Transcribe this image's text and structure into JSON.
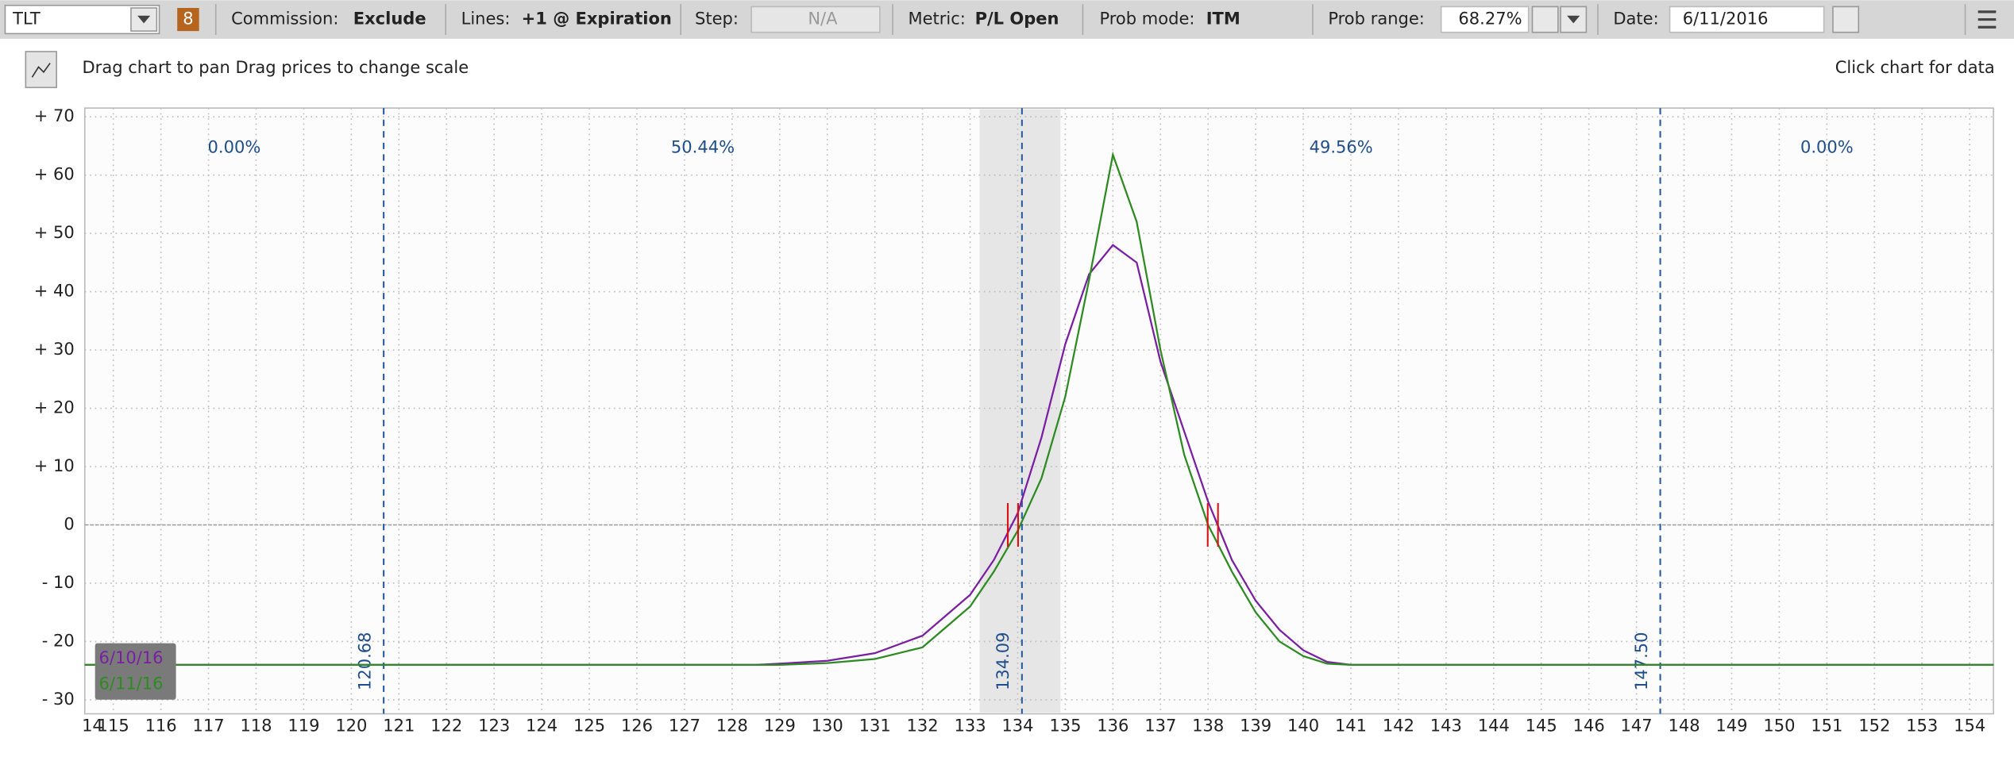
{
  "toolbar": {
    "symbol": "TLT",
    "badge": "8",
    "commission_label": "Commission:",
    "commission": "Exclude",
    "lines_label": "Lines:",
    "lines": "+1 @ Expiration",
    "step_label": "Step:",
    "step": "N/A",
    "metric_label": "Metric:",
    "metric": "P/L Open",
    "prob_mode_label": "Prob mode:",
    "prob_mode": "ITM",
    "prob_range_label": "Prob range:",
    "prob_range": "68.27%",
    "date_label": "Date:",
    "date": "6/11/2016"
  },
  "hint": {
    "left": "Drag chart to pan Drag prices to change scale",
    "right": "Click chart for data"
  },
  "chart_data": {
    "type": "line",
    "x": [
      114.4,
      128.5,
      129,
      130,
      131,
      132,
      133,
      133.5,
      134,
      134.5,
      135,
      135.5,
      136,
      136.5,
      137,
      137.5,
      138,
      138.5,
      139,
      139.5,
      140,
      140.5,
      141,
      154.5
    ],
    "series": [
      {
        "name": "6/10/16",
        "color": "#7a1fa2",
        "values": [
          -24,
          -24,
          -23.8,
          -23.3,
          -22,
          -19,
          -12,
          -6,
          2,
          15,
          31,
          43,
          48,
          45,
          28,
          16,
          4,
          -6,
          -13,
          -18,
          -21.5,
          -23.5,
          -24,
          -24
        ]
      },
      {
        "name": "6/11/16",
        "color": "#2e8b22",
        "values": [
          -24,
          -24,
          -24,
          -23.7,
          -23,
          -21,
          -14,
          -8,
          -1,
          8,
          22,
          42,
          63.5,
          52,
          30,
          12,
          0,
          -8,
          -15,
          -20,
          -22.5,
          -23.8,
          -24,
          -24
        ]
      }
    ],
    "xlim": [
      114.4,
      154.5
    ],
    "xticks": [
      {
        "value": 114,
        "label": "14"
      },
      115,
      116,
      117,
      118,
      119,
      120,
      121,
      122,
      123,
      124,
      125,
      126,
      127,
      128,
      129,
      130,
      131,
      132,
      133,
      134,
      135,
      136,
      137,
      138,
      139,
      140,
      141,
      142,
      143,
      144,
      145,
      146,
      147,
      148,
      149,
      150,
      151,
      152,
      153,
      154
    ],
    "ylim": [
      -32.4,
      71.5
    ],
    "yticks": [
      {
        "value": 70,
        "label": "+ 70"
      },
      {
        "value": 60,
        "label": "+ 60"
      },
      {
        "value": 50,
        "label": "+ 50"
      },
      {
        "value": 40,
        "label": "+ 40"
      },
      {
        "value": 30,
        "label": "+ 30"
      },
      {
        "value": 20,
        "label": "+ 20"
      },
      {
        "value": 10,
        "label": "+ 10"
      },
      0,
      {
        "value": -10,
        "label": "- 10"
      },
      {
        "value": -20,
        "label": "- 20"
      },
      {
        "value": -30,
        "label": "- 30"
      }
    ],
    "grid": true,
    "price_lines": [
      {
        "value": 120.68,
        "label": "120.68"
      },
      {
        "value": 134.09,
        "label": "134.09"
      },
      {
        "value": 147.5,
        "label": "147.50"
      }
    ],
    "zone_values": [
      0,
      50.44,
      49.56,
      0
    ],
    "zone_value_labels": [
      "0.00%",
      "50.44%",
      "49.56%",
      "0.00%"
    ],
    "band": [
      133.2,
      134.9
    ],
    "breakevens": [
      133.9,
      138.1
    ]
  }
}
